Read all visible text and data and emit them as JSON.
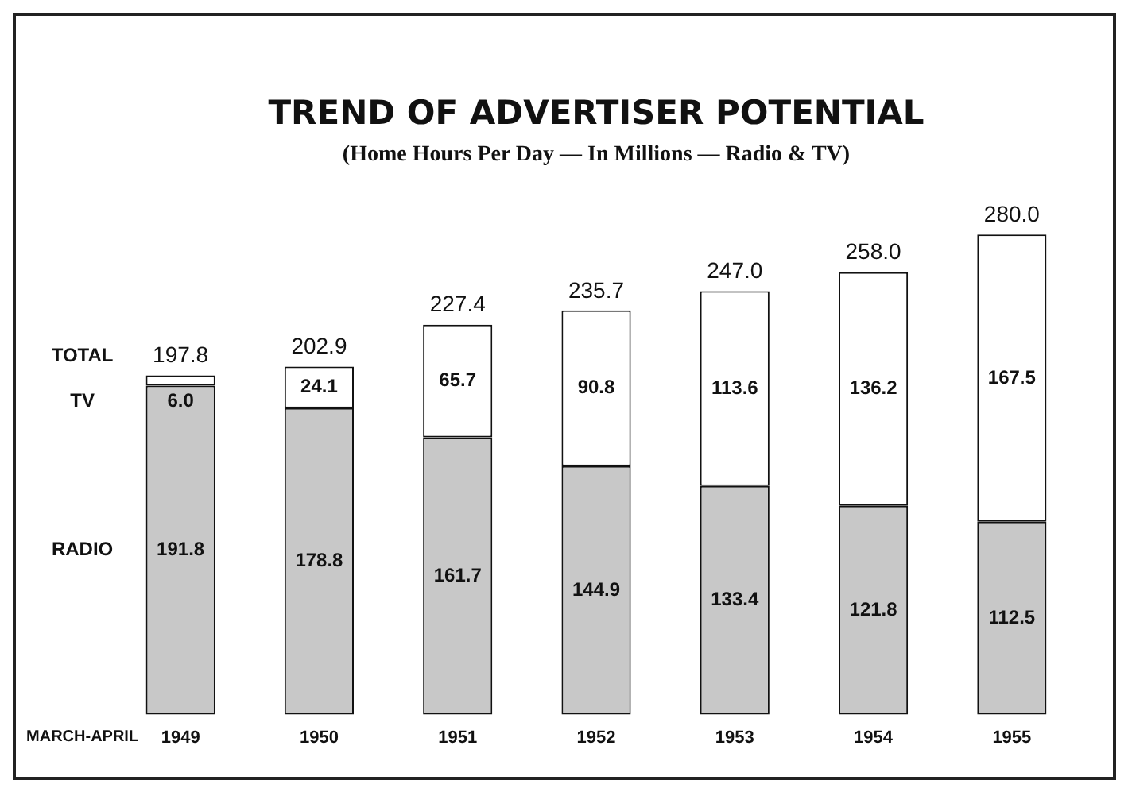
{
  "chart_data": {
    "type": "bar",
    "title": "TREND OF ADVERTISER POTENTIAL",
    "subtitle": "(Home Hours Per Day — In Millions — Radio & TV)",
    "xlabel": "MARCH-APRIL",
    "categories": [
      "1949",
      "1950",
      "1951",
      "1952",
      "1953",
      "1954",
      "1955"
    ],
    "stacked": true,
    "data_labels": true,
    "legend": false,
    "grid": false,
    "series": [
      {
        "name": "RADIO",
        "color": "#c8c8c8",
        "values": [
          191.8,
          178.8,
          161.7,
          144.9,
          133.4,
          121.8,
          112.5
        ],
        "value_labels": [
          "191.8",
          "178.8",
          "161.7",
          "144.9",
          "133.4",
          "121.8",
          "112.5"
        ]
      },
      {
        "name": "TV",
        "color": "#ffffff",
        "values": [
          6.0,
          24.1,
          65.7,
          90.8,
          113.6,
          136.2,
          167.5
        ],
        "value_labels": [
          "6.0",
          "24.1",
          "65.7",
          "90.8",
          "113.6",
          "136.2",
          "167.5"
        ]
      }
    ],
    "totals": [
      "197.8",
      "202.9",
      "227.4",
      "235.7",
      "247.0",
      "258.0",
      "280.0"
    ],
    "annotations": [
      "TOTAL"
    ]
  }
}
